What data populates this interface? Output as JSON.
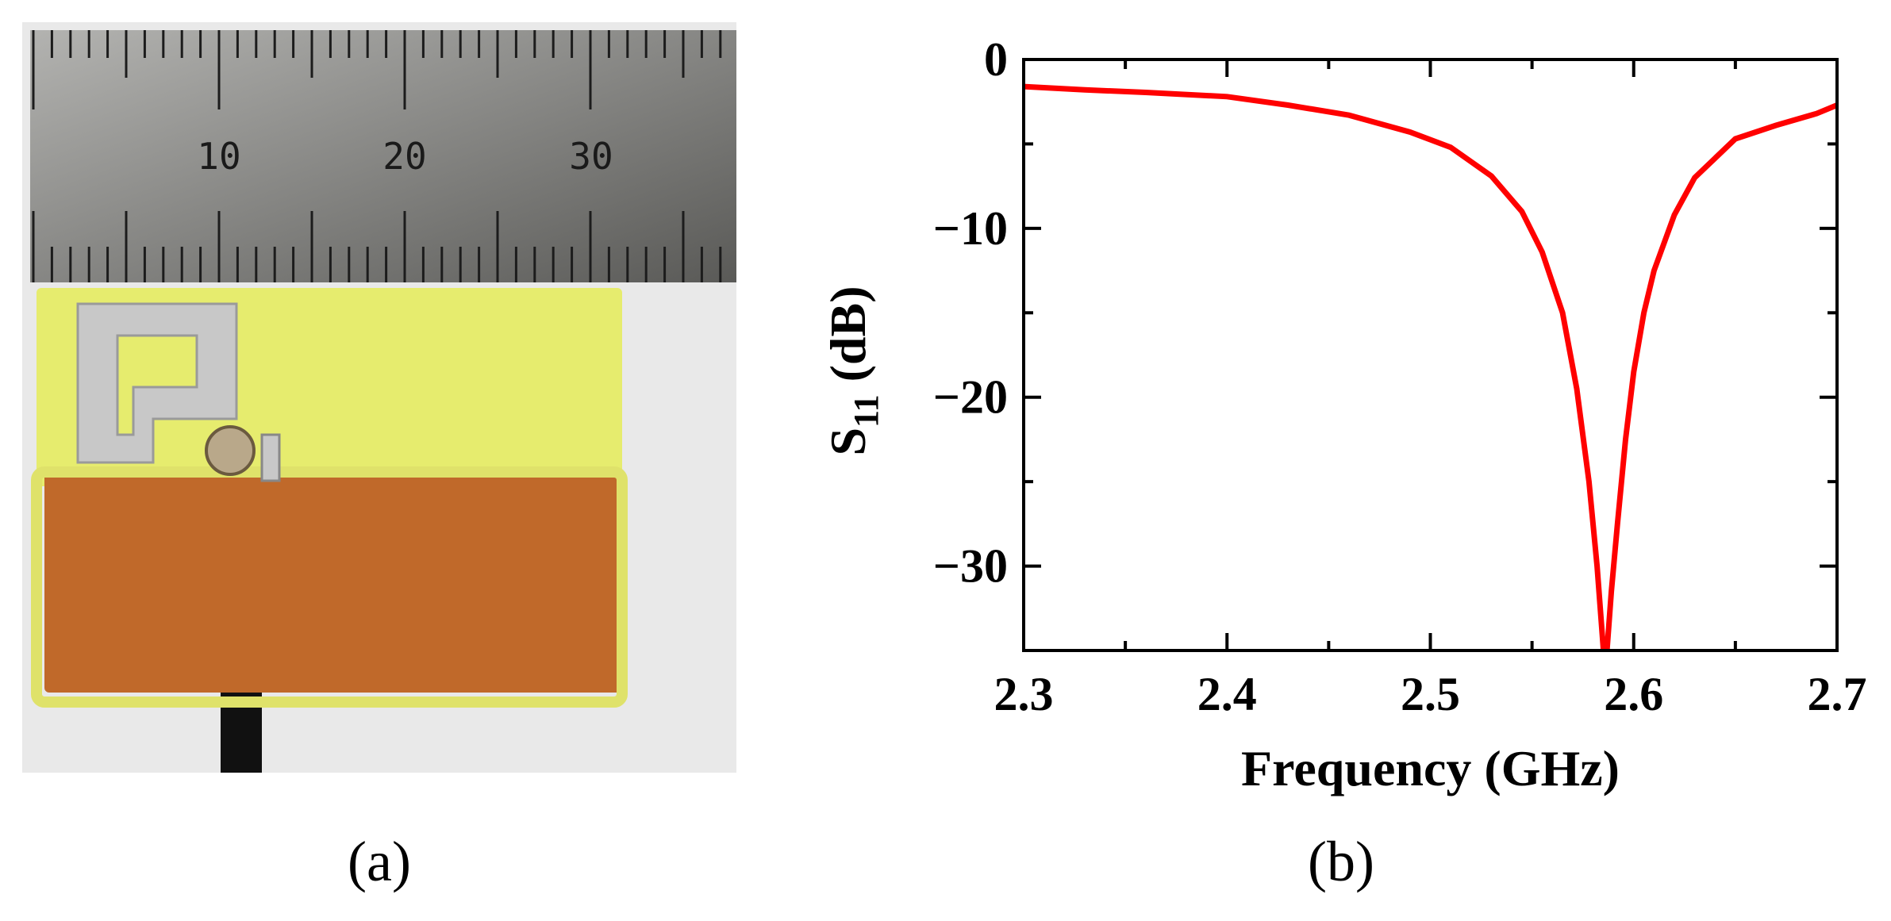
{
  "panels": {
    "a": {
      "caption": "(a)"
    },
    "b": {
      "caption": "(b)"
    }
  },
  "ruler": {
    "labels": [
      "10",
      "20",
      "30"
    ]
  },
  "colors": {
    "curve": "#ff0000",
    "ruler": "#8a8a86",
    "substrate_top": "#e6ec6e",
    "ground_plane": "#c0692a",
    "copper_trace": "#c8c8c8",
    "background_card": "#e9e9e9"
  },
  "chart_data": {
    "type": "line",
    "xlabel": "Frequency (GHz)",
    "ylabel_main": "S",
    "ylabel_sub": "11",
    "ylabel_unit": " (dB)",
    "xlim": [
      2.3,
      2.7
    ],
    "ylim": [
      -35,
      0
    ],
    "xticks": [
      2.3,
      2.4,
      2.5,
      2.6,
      2.7
    ],
    "xtick_labels": [
      "2.3",
      "2.4",
      "2.5",
      "2.6",
      "2.7"
    ],
    "yticks": [
      0,
      -10,
      -20,
      -30
    ],
    "ytick_labels": [
      "0",
      "−10",
      "−20",
      "−30"
    ],
    "grid": false,
    "series": [
      {
        "x": [
          2.3,
          2.33,
          2.36,
          2.4,
          2.43,
          2.46,
          2.49,
          2.51,
          2.53,
          2.545,
          2.555,
          2.565,
          2.572,
          2.578,
          2.582,
          2.585,
          2.587,
          2.589,
          2.592,
          2.596,
          2.6,
          2.605,
          2.61,
          2.62,
          2.63,
          2.65,
          2.67,
          2.69,
          2.7
        ],
        "y": [
          -1.6,
          -1.8,
          -1.95,
          -2.2,
          -2.7,
          -3.3,
          -4.3,
          -5.2,
          -6.9,
          -9.0,
          -11.4,
          -15.0,
          -19.5,
          -25.0,
          -30.0,
          -34.8,
          -34.8,
          -31.5,
          -27.5,
          -22.5,
          -18.5,
          -15.0,
          -12.5,
          -9.2,
          -7.0,
          -4.7,
          -3.9,
          -3.2,
          -2.7
        ]
      }
    ]
  }
}
